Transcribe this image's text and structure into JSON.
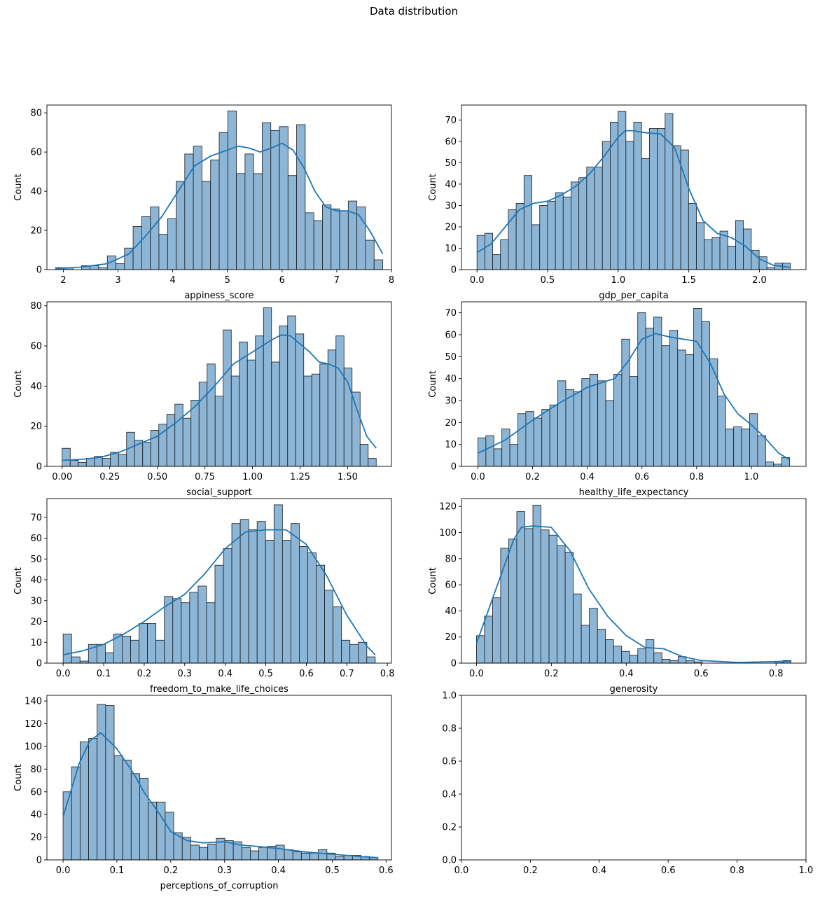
{
  "figure": {
    "title": "Data distribution"
  },
  "style": {
    "bar_fill": "#8db5d6",
    "bar_edge": "#1a1a1a",
    "kde_color": "#1f77b4",
    "axis_color": "#000000"
  },
  "chart_data": [
    {
      "type": "histogram",
      "xlabel": "appiness_score",
      "ylabel": "Count",
      "xlim": [
        1.7,
        8.0
      ],
      "ylim": [
        0,
        84
      ],
      "xticks": [
        2,
        3,
        4,
        5,
        6,
        7,
        8
      ],
      "yticks": [
        0,
        20,
        40,
        60,
        80
      ],
      "bin_range": [
        1.86,
        7.84
      ],
      "counts": [
        1,
        1,
        0,
        2,
        2,
        1,
        7,
        3,
        11,
        22,
        27,
        32,
        18,
        26,
        45,
        59,
        63,
        45,
        56,
        70,
        81,
        49,
        59,
        49,
        75,
        71,
        73,
        48,
        74,
        29,
        25,
        33,
        31,
        30,
        35,
        32,
        15,
        5
      ],
      "kde": [
        [
          1.86,
          0.5
        ],
        [
          2.3,
          1.2
        ],
        [
          2.8,
          3
        ],
        [
          3.2,
          8
        ],
        [
          3.5,
          17
        ],
        [
          3.8,
          27
        ],
        [
          4.1,
          40
        ],
        [
          4.4,
          53
        ],
        [
          4.7,
          58
        ],
        [
          5.0,
          61
        ],
        [
          5.2,
          63
        ],
        [
          5.4,
          62
        ],
        [
          5.6,
          60
        ],
        [
          5.8,
          62
        ],
        [
          6.0,
          64.5
        ],
        [
          6.2,
          61
        ],
        [
          6.4,
          52
        ],
        [
          6.6,
          40
        ],
        [
          6.8,
          32
        ],
        [
          7.0,
          30
        ],
        [
          7.2,
          30
        ],
        [
          7.4,
          28
        ],
        [
          7.6,
          20
        ],
        [
          7.84,
          8
        ]
      ]
    },
    {
      "type": "histogram",
      "xlabel": "gdp_per_capita",
      "ylabel": "Count",
      "xlim": [
        -0.11,
        2.33
      ],
      "ylim": [
        0,
        77
      ],
      "xticks": [
        0.0,
        0.5,
        1.0,
        1.5,
        2.0
      ],
      "yticks": [
        0,
        10,
        20,
        30,
        40,
        50,
        60,
        70
      ],
      "bin_range": [
        0.0,
        2.22
      ],
      "counts": [
        16,
        17,
        7,
        14,
        28,
        31,
        44,
        21,
        30,
        32,
        36,
        34,
        41,
        43,
        48,
        48,
        60,
        69,
        74,
        60,
        69,
        52,
        66,
        66,
        73,
        58,
        56,
        31,
        22,
        14,
        15,
        18,
        11,
        23,
        19,
        9,
        6,
        1,
        3,
        3
      ],
      "kde": [
        [
          0.0,
          8
        ],
        [
          0.1,
          12
        ],
        [
          0.2,
          20
        ],
        [
          0.3,
          28
        ],
        [
          0.4,
          31
        ],
        [
          0.5,
          32
        ],
        [
          0.6,
          35
        ],
        [
          0.7,
          39
        ],
        [
          0.8,
          45
        ],
        [
          0.9,
          53
        ],
        [
          1.0,
          62
        ],
        [
          1.05,
          65
        ],
        [
          1.1,
          65
        ],
        [
          1.2,
          64
        ],
        [
          1.3,
          63.5
        ],
        [
          1.4,
          57
        ],
        [
          1.5,
          38
        ],
        [
          1.6,
          23
        ],
        [
          1.7,
          17
        ],
        [
          1.8,
          15
        ],
        [
          1.9,
          11
        ],
        [
          2.0,
          5
        ],
        [
          2.1,
          2
        ],
        [
          2.22,
          1
        ]
      ]
    },
    {
      "type": "histogram",
      "xlabel": "social_support",
      "ylabel": "Count",
      "xlim": [
        -0.08,
        1.73
      ],
      "ylim": [
        0,
        82
      ],
      "xticks": [
        0.0,
        0.25,
        0.5,
        0.75,
        1.0,
        1.25,
        1.5
      ],
      "tick_labels": [
        "0.00",
        "0.25",
        "0.50",
        "0.75",
        "1.00",
        "1.25",
        "1.50"
      ],
      "yticks": [
        0,
        20,
        40,
        60,
        80
      ],
      "bin_range": [
        0.0,
        1.65
      ],
      "counts": [
        9,
        3,
        2,
        4,
        5,
        4,
        7,
        6,
        17,
        13,
        12,
        18,
        21,
        26,
        31,
        24,
        33,
        42,
        51,
        35,
        68,
        45,
        62,
        53,
        65,
        79,
        52,
        70,
        75,
        66,
        45,
        46,
        51,
        58,
        65,
        49,
        37,
        11,
        4
      ],
      "kde": [
        [
          0.0,
          3
        ],
        [
          0.1,
          3.5
        ],
        [
          0.2,
          4.5
        ],
        [
          0.3,
          7
        ],
        [
          0.4,
          11
        ],
        [
          0.5,
          15
        ],
        [
          0.6,
          22
        ],
        [
          0.7,
          30
        ],
        [
          0.8,
          40
        ],
        [
          0.9,
          51
        ],
        [
          1.0,
          57
        ],
        [
          1.1,
          63
        ],
        [
          1.15,
          65.5
        ],
        [
          1.2,
          65
        ],
        [
          1.3,
          57
        ],
        [
          1.35,
          52
        ],
        [
          1.4,
          51
        ],
        [
          1.45,
          49
        ],
        [
          1.5,
          42
        ],
        [
          1.55,
          28
        ],
        [
          1.6,
          15
        ],
        [
          1.65,
          9
        ]
      ]
    },
    {
      "type": "histogram",
      "xlabel": "healthy_life_expectancy",
      "ylabel": "Count",
      "xlim": [
        -0.06,
        1.2
      ],
      "ylim": [
        0,
        75
      ],
      "xticks": [
        0.0,
        0.2,
        0.4,
        0.6,
        0.8,
        1.0
      ],
      "yticks": [
        0,
        10,
        20,
        30,
        40,
        50,
        60,
        70
      ],
      "bin_range": [
        0.0,
        1.14
      ],
      "counts": [
        13,
        14,
        8,
        17,
        10,
        24,
        25,
        22,
        26,
        28,
        39,
        35,
        34,
        40,
        42,
        39,
        30,
        42,
        58,
        41,
        70,
        63,
        68,
        55,
        62,
        53,
        51,
        72,
        66,
        49,
        32,
        17,
        18,
        17,
        24,
        14,
        2,
        1,
        4
      ],
      "kde": [
        [
          0.0,
          6
        ],
        [
          0.1,
          12
        ],
        [
          0.2,
          21
        ],
        [
          0.3,
          29
        ],
        [
          0.4,
          36
        ],
        [
          0.45,
          38
        ],
        [
          0.5,
          40
        ],
        [
          0.55,
          48
        ],
        [
          0.6,
          58
        ],
        [
          0.65,
          60.5
        ],
        [
          0.7,
          59
        ],
        [
          0.75,
          58
        ],
        [
          0.8,
          57
        ],
        [
          0.85,
          47
        ],
        [
          0.9,
          33
        ],
        [
          0.95,
          24
        ],
        [
          1.0,
          19
        ],
        [
          1.05,
          13
        ],
        [
          1.1,
          6
        ],
        [
          1.14,
          3
        ]
      ]
    },
    {
      "type": "histogram",
      "xlabel": "freedom_to_make_life_choices",
      "ylabel": "Count",
      "xlim": [
        -0.04,
        0.81
      ],
      "ylim": [
        0,
        79
      ],
      "xticks": [
        0.0,
        0.1,
        0.2,
        0.3,
        0.4,
        0.5,
        0.6,
        0.7,
        0.8
      ],
      "yticks": [
        0,
        10,
        20,
        30,
        40,
        50,
        60,
        70
      ],
      "bin_range": [
        0.0,
        0.77
      ],
      "counts": [
        14,
        3,
        1,
        9,
        9,
        5,
        14,
        13,
        11,
        19,
        19,
        11,
        32,
        31,
        29,
        34,
        37,
        29,
        47,
        55,
        67,
        69,
        64,
        68,
        59,
        76,
        59,
        67,
        56,
        53,
        47,
        35,
        27,
        11,
        9,
        10,
        3
      ],
      "kde": [
        [
          0.0,
          4
        ],
        [
          0.05,
          6
        ],
        [
          0.1,
          9
        ],
        [
          0.15,
          14
        ],
        [
          0.2,
          20
        ],
        [
          0.25,
          27
        ],
        [
          0.3,
          33
        ],
        [
          0.35,
          43
        ],
        [
          0.4,
          55
        ],
        [
          0.45,
          63
        ],
        [
          0.5,
          64
        ],
        [
          0.55,
          64
        ],
        [
          0.6,
          57
        ],
        [
          0.65,
          42
        ],
        [
          0.7,
          23
        ],
        [
          0.75,
          8
        ],
        [
          0.77,
          4
        ]
      ]
    },
    {
      "type": "histogram",
      "xlabel": "generosity",
      "ylabel": "Count",
      "xlim": [
        -0.04,
        0.88
      ],
      "ylim": [
        0,
        126
      ],
      "xticks": [
        0.0,
        0.2,
        0.4,
        0.6,
        0.8
      ],
      "yticks": [
        0,
        20,
        40,
        60,
        80,
        100,
        120
      ],
      "bin_range": [
        0.0,
        0.84
      ],
      "counts": [
        21,
        36,
        50,
        88,
        95,
        116,
        103,
        121,
        102,
        98,
        90,
        85,
        53,
        29,
        42,
        26,
        18,
        13,
        9,
        6,
        11,
        18,
        8,
        3,
        2,
        5,
        2,
        1,
        0,
        0,
        0,
        0,
        0,
        0,
        0,
        0,
        0,
        1,
        2
      ],
      "kde": [
        [
          0.0,
          15
        ],
        [
          0.05,
          55
        ],
        [
          0.1,
          95
        ],
        [
          0.12,
          104
        ],
        [
          0.15,
          105
        ],
        [
          0.2,
          104
        ],
        [
          0.25,
          86
        ],
        [
          0.3,
          57
        ],
        [
          0.35,
          36
        ],
        [
          0.4,
          21
        ],
        [
          0.45,
          12
        ],
        [
          0.5,
          11
        ],
        [
          0.55,
          5
        ],
        [
          0.6,
          2
        ],
        [
          0.7,
          0.5
        ],
        [
          0.84,
          1.5
        ]
      ]
    },
    {
      "type": "histogram",
      "xlabel": "perceptions_of_corruption",
      "ylabel": "Count",
      "xlim": [
        -0.03,
        0.61
      ],
      "ylim": [
        0,
        145
      ],
      "xticks": [
        0.0,
        0.1,
        0.2,
        0.3,
        0.4,
        0.5,
        0.6
      ],
      "yticks": [
        0,
        20,
        40,
        60,
        80,
        100,
        120,
        140
      ],
      "bin_range": [
        0.0,
        0.585
      ],
      "counts": [
        60,
        82,
        104,
        107,
        137,
        136,
        92,
        88,
        76,
        72,
        51,
        51,
        42,
        24,
        20,
        13,
        11,
        14,
        19,
        17,
        16,
        11,
        8,
        11,
        12,
        13,
        9,
        7,
        6,
        6,
        9,
        6,
        3,
        4,
        4,
        3,
        2
      ],
      "kde": [
        [
          0.0,
          38
        ],
        [
          0.03,
          85
        ],
        [
          0.05,
          105
        ],
        [
          0.07,
          112
        ],
        [
          0.1,
          98
        ],
        [
          0.13,
          77
        ],
        [
          0.15,
          60
        ],
        [
          0.18,
          40
        ],
        [
          0.2,
          25
        ],
        [
          0.23,
          17
        ],
        [
          0.26,
          15
        ],
        [
          0.3,
          16
        ],
        [
          0.33,
          13
        ],
        [
          0.36,
          12
        ],
        [
          0.4,
          10
        ],
        [
          0.45,
          7
        ],
        [
          0.5,
          5
        ],
        [
          0.55,
          3
        ],
        [
          0.585,
          2
        ]
      ]
    },
    {
      "type": "empty",
      "xlabel": "",
      "ylabel": "",
      "xlim": [
        0,
        1
      ],
      "ylim": [
        0,
        1
      ],
      "xticks": [
        0.0,
        0.2,
        0.4,
        0.6,
        0.8,
        1.0
      ],
      "yticks": [
        0.0,
        0.2,
        0.4,
        0.6,
        0.8,
        1.0
      ],
      "counts": []
    }
  ]
}
